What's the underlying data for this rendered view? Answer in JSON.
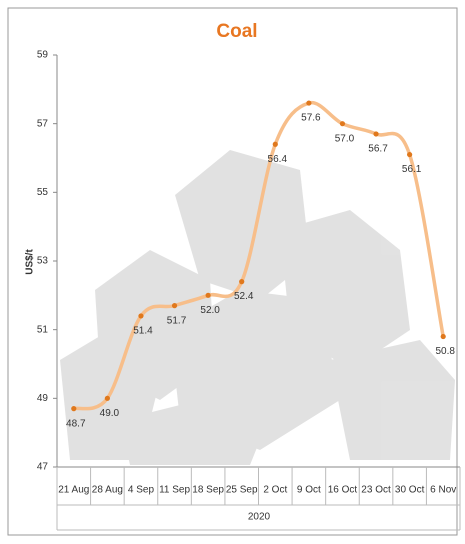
{
  "chart_data": {
    "type": "line",
    "title": "Coal",
    "y_label": "US$/t",
    "group_label": "2020",
    "categories": [
      "21 Aug",
      "28 Aug",
      "4 Sep",
      "11 Sep",
      "18 Sep",
      "25 Sep",
      "2 Oct",
      "9 Oct",
      "16 Oct",
      "23 Oct",
      "30 Oct",
      "6 Nov"
    ],
    "values": [
      48.7,
      49.0,
      51.4,
      51.7,
      52.0,
      52.4,
      56.4,
      57.6,
      57.0,
      56.7,
      56.1,
      50.8
    ],
    "value_labels": [
      "48.7",
      "49.0",
      "51.4",
      "51.7",
      "52.0",
      "52.4",
      "56.4",
      "57.6",
      "57.0",
      "56.7",
      "56.1",
      "50.8"
    ],
    "line_color": "#f7be8a",
    "marker_color": "#e0781c",
    "title_color": "#e87722",
    "ylim": [
      47,
      59
    ],
    "yticks": [
      47,
      49,
      51,
      53,
      55,
      57,
      59
    ],
    "smooth": true
  }
}
